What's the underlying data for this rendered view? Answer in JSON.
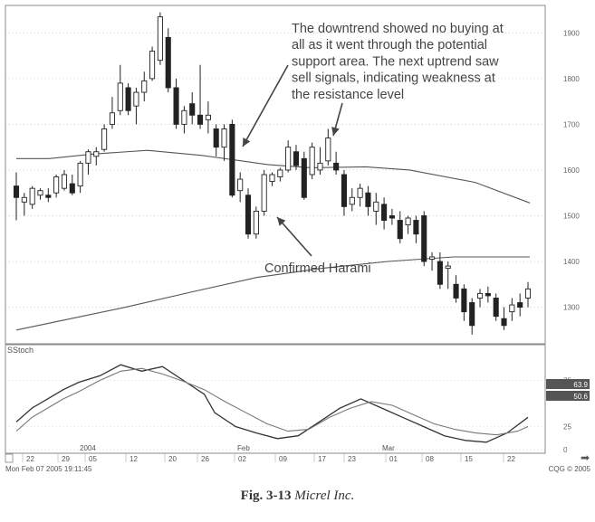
{
  "chart_data": [
    {
      "type": "candlestick",
      "title": "",
      "ylim": [
        1220,
        1960
      ],
      "y_ticks": [
        "1300",
        "1400",
        "1500",
        "1600",
        "1700",
        "1800",
        "1900"
      ],
      "moving_average_short": {
        "x": [
          0,
          6,
          14,
          24,
          34,
          46,
          54,
          64,
          72,
          84,
          94
        ],
        "values": [
          1625,
          1625,
          1635,
          1643,
          1632,
          1612,
          1605,
          1607,
          1600,
          1573,
          1528
        ]
      },
      "moving_average_long": {
        "x": [
          0,
          10,
          20,
          32,
          44,
          56,
          68,
          80,
          94
        ],
        "values": [
          1250,
          1275,
          1300,
          1333,
          1365,
          1385,
          1400,
          1410,
          1410
        ]
      },
      "candles": [
        {
          "o": 1540,
          "h": 1595,
          "l": 1490,
          "c": 1565,
          "down": true
        },
        {
          "o": 1530,
          "h": 1550,
          "l": 1500,
          "c": 1540,
          "down": false
        },
        {
          "o": 1525,
          "h": 1565,
          "l": 1515,
          "c": 1560,
          "down": false
        },
        {
          "o": 1545,
          "h": 1560,
          "l": 1535,
          "c": 1555,
          "down": false
        },
        {
          "o": 1545,
          "h": 1560,
          "l": 1530,
          "c": 1540,
          "down": true
        },
        {
          "o": 1550,
          "h": 1590,
          "l": 1540,
          "c": 1585,
          "down": false
        },
        {
          "o": 1560,
          "h": 1600,
          "l": 1555,
          "c": 1590,
          "down": false
        },
        {
          "o": 1570,
          "h": 1590,
          "l": 1545,
          "c": 1550,
          "down": true
        },
        {
          "o": 1565,
          "h": 1620,
          "l": 1550,
          "c": 1615,
          "down": false
        },
        {
          "o": 1615,
          "h": 1645,
          "l": 1590,
          "c": 1640,
          "down": false
        },
        {
          "o": 1630,
          "h": 1650,
          "l": 1610,
          "c": 1640,
          "down": false
        },
        {
          "o": 1645,
          "h": 1700,
          "l": 1640,
          "c": 1690,
          "down": false
        },
        {
          "o": 1700,
          "h": 1760,
          "l": 1690,
          "c": 1725,
          "down": false
        },
        {
          "o": 1730,
          "h": 1830,
          "l": 1720,
          "c": 1790,
          "down": false
        },
        {
          "o": 1780,
          "h": 1790,
          "l": 1720,
          "c": 1730,
          "down": true
        },
        {
          "o": 1740,
          "h": 1780,
          "l": 1700,
          "c": 1770,
          "down": false
        },
        {
          "o": 1770,
          "h": 1815,
          "l": 1750,
          "c": 1795,
          "down": false
        },
        {
          "o": 1800,
          "h": 1870,
          "l": 1795,
          "c": 1860,
          "down": false
        },
        {
          "o": 1840,
          "h": 1945,
          "l": 1830,
          "c": 1935,
          "down": false
        },
        {
          "o": 1890,
          "h": 1910,
          "l": 1770,
          "c": 1780,
          "down": true
        },
        {
          "o": 1780,
          "h": 1800,
          "l": 1690,
          "c": 1700,
          "down": true
        },
        {
          "o": 1700,
          "h": 1740,
          "l": 1680,
          "c": 1730,
          "down": false
        },
        {
          "o": 1745,
          "h": 1770,
          "l": 1700,
          "c": 1720,
          "down": true
        },
        {
          "o": 1720,
          "h": 1830,
          "l": 1690,
          "c": 1700,
          "down": true
        },
        {
          "o": 1710,
          "h": 1750,
          "l": 1680,
          "c": 1720,
          "down": false
        },
        {
          "o": 1690,
          "h": 1700,
          "l": 1630,
          "c": 1650,
          "down": true
        },
        {
          "o": 1650,
          "h": 1700,
          "l": 1620,
          "c": 1690,
          "down": false
        },
        {
          "o": 1700,
          "h": 1710,
          "l": 1540,
          "c": 1545,
          "down": true
        },
        {
          "o": 1580,
          "h": 1595,
          "l": 1530,
          "c": 1555,
          "down": false
        },
        {
          "o": 1545,
          "h": 1560,
          "l": 1450,
          "c": 1460,
          "down": true
        },
        {
          "o": 1460,
          "h": 1520,
          "l": 1450,
          "c": 1510,
          "down": false
        },
        {
          "o": 1510,
          "h": 1600,
          "l": 1500,
          "c": 1590,
          "down": false
        },
        {
          "o": 1575,
          "h": 1595,
          "l": 1565,
          "c": 1590,
          "down": false
        },
        {
          "o": 1585,
          "h": 1605,
          "l": 1575,
          "c": 1600,
          "down": false
        },
        {
          "o": 1600,
          "h": 1665,
          "l": 1595,
          "c": 1650,
          "down": false
        },
        {
          "o": 1640,
          "h": 1655,
          "l": 1600,
          "c": 1610,
          "down": true
        },
        {
          "o": 1625,
          "h": 1640,
          "l": 1535,
          "c": 1540,
          "down": true
        },
        {
          "o": 1590,
          "h": 1660,
          "l": 1580,
          "c": 1650,
          "down": false
        },
        {
          "o": 1600,
          "h": 1650,
          "l": 1590,
          "c": 1615,
          "down": false
        },
        {
          "o": 1620,
          "h": 1690,
          "l": 1610,
          "c": 1670,
          "down": false
        },
        {
          "o": 1615,
          "h": 1640,
          "l": 1590,
          "c": 1600,
          "down": true
        },
        {
          "o": 1590,
          "h": 1600,
          "l": 1500,
          "c": 1520,
          "down": true
        },
        {
          "o": 1525,
          "h": 1560,
          "l": 1510,
          "c": 1540,
          "down": false
        },
        {
          "o": 1540,
          "h": 1570,
          "l": 1520,
          "c": 1560,
          "down": false
        },
        {
          "o": 1550,
          "h": 1565,
          "l": 1500,
          "c": 1520,
          "down": true
        },
        {
          "o": 1510,
          "h": 1550,
          "l": 1480,
          "c": 1530,
          "down": false
        },
        {
          "o": 1525,
          "h": 1540,
          "l": 1470,
          "c": 1490,
          "down": true
        },
        {
          "o": 1500,
          "h": 1515,
          "l": 1480,
          "c": 1495,
          "down": true
        },
        {
          "o": 1490,
          "h": 1510,
          "l": 1440,
          "c": 1450,
          "down": true
        },
        {
          "o": 1480,
          "h": 1500,
          "l": 1460,
          "c": 1495,
          "down": false
        },
        {
          "o": 1490,
          "h": 1500,
          "l": 1440,
          "c": 1460,
          "down": true
        },
        {
          "o": 1500,
          "h": 1510,
          "l": 1390,
          "c": 1400,
          "down": true
        },
        {
          "o": 1410,
          "h": 1420,
          "l": 1380,
          "c": 1405,
          "down": false
        },
        {
          "o": 1400,
          "h": 1420,
          "l": 1340,
          "c": 1350,
          "down": true
        },
        {
          "o": 1390,
          "h": 1400,
          "l": 1340,
          "c": 1385,
          "down": false
        },
        {
          "o": 1350,
          "h": 1370,
          "l": 1310,
          "c": 1320,
          "down": true
        },
        {
          "o": 1340,
          "h": 1350,
          "l": 1270,
          "c": 1290,
          "down": true
        },
        {
          "o": 1310,
          "h": 1320,
          "l": 1240,
          "c": 1260,
          "down": true
        },
        {
          "o": 1320,
          "h": 1340,
          "l": 1300,
          "c": 1330,
          "down": false
        },
        {
          "o": 1330,
          "h": 1345,
          "l": 1310,
          "c": 1325,
          "down": true
        },
        {
          "o": 1320,
          "h": 1330,
          "l": 1270,
          "c": 1280,
          "down": true
        },
        {
          "o": 1275,
          "h": 1300,
          "l": 1250,
          "c": 1260,
          "down": true
        },
        {
          "o": 1290,
          "h": 1320,
          "l": 1270,
          "c": 1305,
          "down": false
        },
        {
          "o": 1310,
          "h": 1330,
          "l": 1280,
          "c": 1300,
          "down": true
        },
        {
          "o": 1320,
          "h": 1355,
          "l": 1300,
          "c": 1340,
          "down": false
        }
      ],
      "annotations": [
        {
          "text": [
            "The downtrend showed no buying at",
            "all as it went through the potential",
            "support area. The next uptrend saw",
            "sell signals, indicating weakness at",
            "the resistance level"
          ]
        },
        {
          "text": [
            "Confirmed Harami"
          ]
        }
      ]
    },
    {
      "type": "line",
      "title": "SStoch",
      "ylim": [
        0,
        100
      ],
      "y_ticks": [
        "0",
        "25",
        "75"
      ],
      "value_tags": [
        "63.9",
        "50.6"
      ],
      "x_tick_labels": [
        "22",
        "29",
        "05",
        "12",
        "20",
        "26",
        "02",
        "09",
        "17",
        "23",
        "01",
        "08",
        "15",
        "22"
      ],
      "period_labels": [
        "2004",
        "Feb",
        "Mar"
      ],
      "series": [
        {
          "name": "",
          "x": [
            0,
            3,
            6,
            9,
            12,
            16,
            20,
            24,
            28,
            32,
            36,
            38,
            42,
            46,
            50,
            54,
            58,
            62,
            66,
            70,
            74,
            78,
            82,
            86,
            90,
            94,
            98
          ],
          "values": [
            30,
            45,
            55,
            65,
            73,
            80,
            92,
            85,
            90,
            75,
            60,
            40,
            25,
            18,
            12,
            15,
            30,
            45,
            55,
            45,
            35,
            25,
            15,
            10,
            8,
            18,
            35
          ]
        },
        {
          "name": "",
          "x": [
            0,
            3,
            6,
            9,
            12,
            16,
            20,
            24,
            28,
            32,
            36,
            40,
            44,
            48,
            52,
            56,
            60,
            64,
            68,
            72,
            76,
            80,
            84,
            88,
            92,
            96,
            98
          ],
          "values": [
            20,
            35,
            45,
            55,
            63,
            75,
            85,
            88,
            82,
            74,
            65,
            52,
            40,
            28,
            20,
            22,
            35,
            45,
            52,
            48,
            38,
            28,
            22,
            18,
            16,
            20,
            25
          ]
        }
      ]
    }
  ],
  "footer": {
    "timestamp": "Mon Feb 07 2005 19:11:45",
    "copyright": "CQG © 2005"
  },
  "caption": {
    "fig": "Fig. 3-13",
    "name": "Micrel Inc."
  }
}
